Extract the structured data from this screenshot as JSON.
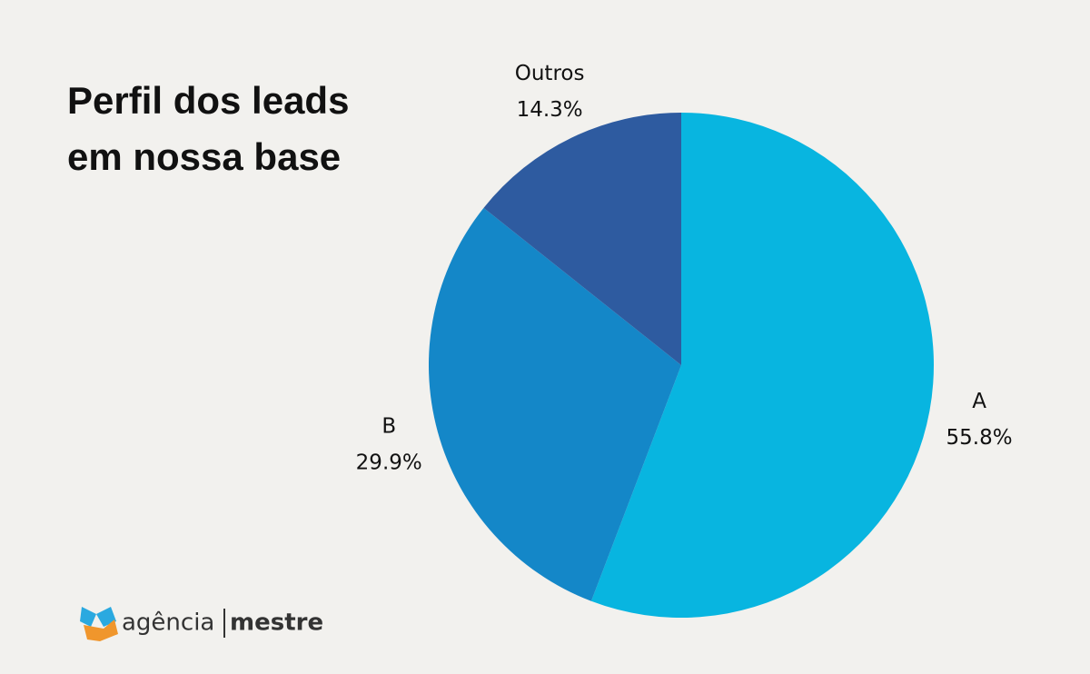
{
  "chart_data": {
    "type": "pie",
    "title": "Perfil dos leads em nossa base",
    "categories": [
      "A",
      "B",
      "Outros"
    ],
    "values": [
      55.8,
      29.9,
      14.3
    ],
    "value_labels": [
      "55.8%",
      "29.9%",
      "14.3%"
    ],
    "colors": [
      "#08b5e0",
      "#1487c8",
      "#2e5ba0"
    ]
  },
  "brand": {
    "left": "agência",
    "right": "mestre"
  }
}
